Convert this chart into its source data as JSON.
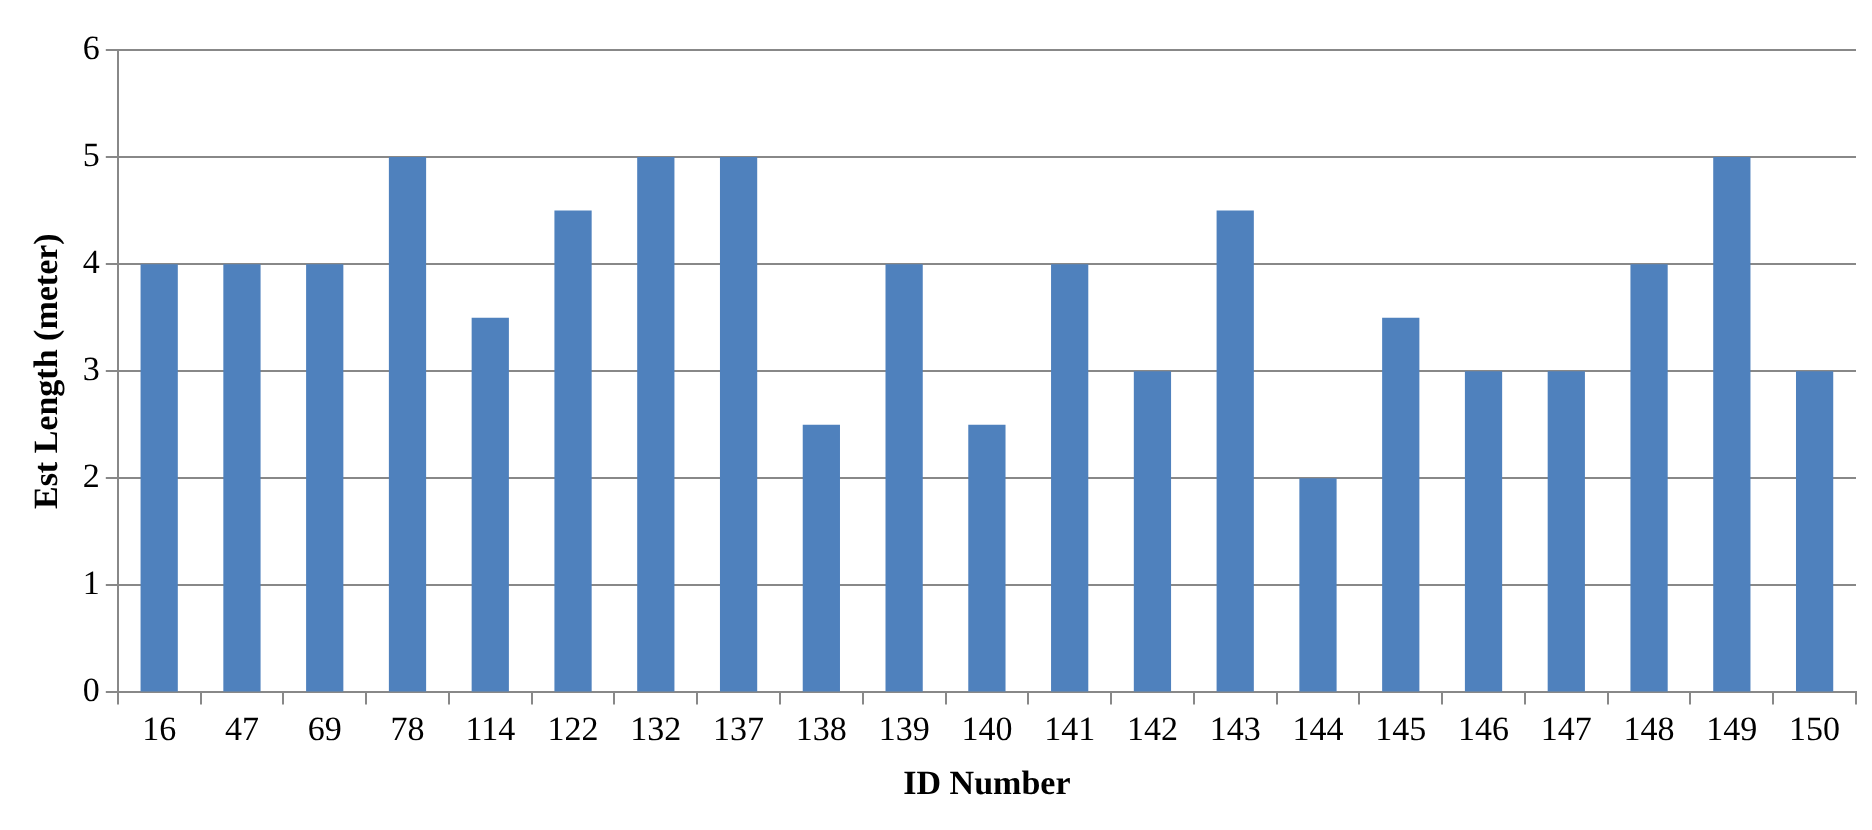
{
  "chart_data": {
    "type": "bar",
    "xlabel": "ID Number",
    "ylabel": "Est Length (meter)",
    "categories": [
      "16",
      "47",
      "69",
      "78",
      "114",
      "122",
      "132",
      "137",
      "138",
      "139",
      "140",
      "141",
      "142",
      "143",
      "144",
      "145",
      "146",
      "147",
      "148",
      "149",
      "150"
    ],
    "values": [
      4,
      4,
      4,
      5,
      3.5,
      4.5,
      5,
      5,
      2.5,
      4,
      2.5,
      4,
      3,
      4.5,
      2,
      3.5,
      3,
      3,
      4,
      5,
      3
    ],
    "color": "#4f81bd",
    "ylim": [
      0,
      6
    ],
    "yticks": [
      0,
      1,
      2,
      3,
      4,
      5,
      6
    ],
    "grid": "y"
  }
}
